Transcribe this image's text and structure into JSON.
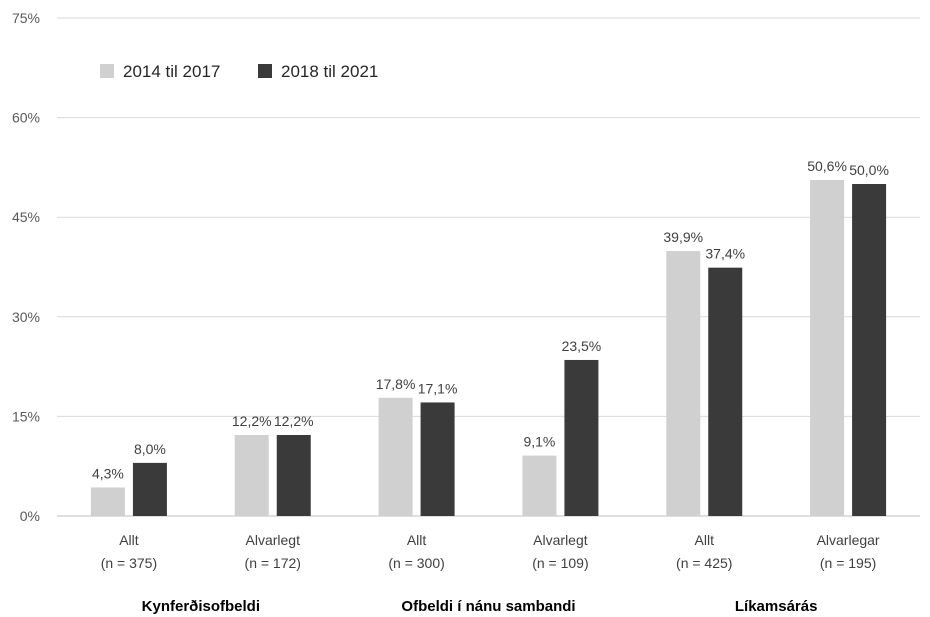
{
  "chart_data": {
    "type": "bar",
    "ylim": [
      0,
      75
    ],
    "yticks": [
      "0%",
      "15%",
      "30%",
      "45%",
      "60%",
      "75%"
    ],
    "grid": true,
    "legend_position": "top-left",
    "categories": [
      "Allt\n(n = 375)",
      "Alvarlegt\n(n = 172)",
      "Allt\n(n = 300)",
      "Alvarlegt\n(n = 109)",
      "Allt\n(n = 425)",
      "Alvarlegar\n(n = 195)"
    ],
    "category_lines": [
      [
        "Allt",
        "(n = 375)"
      ],
      [
        "Alvarlegt",
        "(n = 172)"
      ],
      [
        "Allt",
        "(n = 300)"
      ],
      [
        "Alvarlegt",
        "(n = 109)"
      ],
      [
        "Allt",
        "(n = 425)"
      ],
      [
        "Alvarlegar",
        "(n = 195)"
      ]
    ],
    "groups": [
      "Kynferðisofbeldi",
      "Ofbeldi í nánu sambandi",
      "Líkamsárás"
    ],
    "series": [
      {
        "name": "2014 til 2017",
        "color": "#d0d0d0",
        "values": [
          4.3,
          12.2,
          17.8,
          9.1,
          39.9,
          50.6
        ],
        "labels": [
          "4,3%",
          "12,2%",
          "17,8%",
          "9,1%",
          "39,9%",
          "50,6%"
        ]
      },
      {
        "name": "2018 til 2021",
        "color": "#3a3a3a",
        "values": [
          8.0,
          12.2,
          17.1,
          23.5,
          37.4,
          50.0
        ],
        "labels": [
          "8,0%",
          "12,2%",
          "17,1%",
          "23,5%",
          "37,4%",
          "50,0%"
        ]
      }
    ]
  }
}
